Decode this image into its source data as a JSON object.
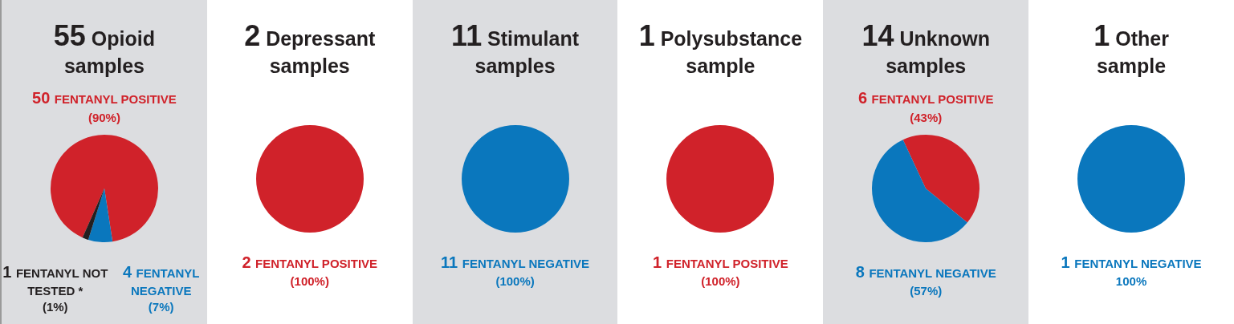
{
  "chart_data": [
    {
      "type": "pie",
      "title": "55 Opioid samples",
      "categories": [
        "FENTANYL POSITIVE\n(90%)",
        "FENTANYL NEGATIVE\n(7%)",
        "FENTANYL NOT TESTED *\n(1%)"
      ],
      "values": [
        50,
        4,
        1
      ],
      "value_labels": [
        "50",
        "4",
        "1"
      ],
      "colors": [
        "#d0222a",
        "#0a77bd",
        "#231f20"
      ],
      "legend": false
    },
    {
      "type": "pie",
      "title": "2 Depressant samples",
      "categories": [
        "FENTANYL POSITIVE\n(100%)"
      ],
      "values": [
        2
      ],
      "value_labels": [
        "2"
      ],
      "colors": [
        "#d0222a"
      ],
      "legend": false
    },
    {
      "type": "pie",
      "title": "11 Stimulant samples",
      "categories": [
        "FENTANYL NEGATIVE\n(100%)"
      ],
      "values": [
        11
      ],
      "value_labels": [
        "11"
      ],
      "colors": [
        "#0a77bd"
      ],
      "legend": false
    },
    {
      "type": "pie",
      "title": "1 Polysubstance sample",
      "categories": [
        "FENTANYL POSITIVE\n(100%)"
      ],
      "values": [
        1
      ],
      "value_labels": [
        "1"
      ],
      "colors": [
        "#d0222a"
      ],
      "legend": false
    },
    {
      "type": "pie",
      "title": "14 Unknown samples",
      "categories": [
        "FENTANYL POSITIVE\n(43%)",
        "FENTANYL NEGATIVE\n(57%)"
      ],
      "values": [
        6,
        8
      ],
      "value_labels": [
        "6",
        "8"
      ],
      "colors": [
        "#d0222a",
        "#0a77bd"
      ],
      "legend": false
    },
    {
      "type": "pie",
      "title": "1 Other sample",
      "categories": [
        "FENTANYL NEGATIVE\n100%"
      ],
      "values": [
        1
      ],
      "value_labels": [
        "1"
      ],
      "colors": [
        "#0a77bd"
      ],
      "legend": false
    }
  ]
}
